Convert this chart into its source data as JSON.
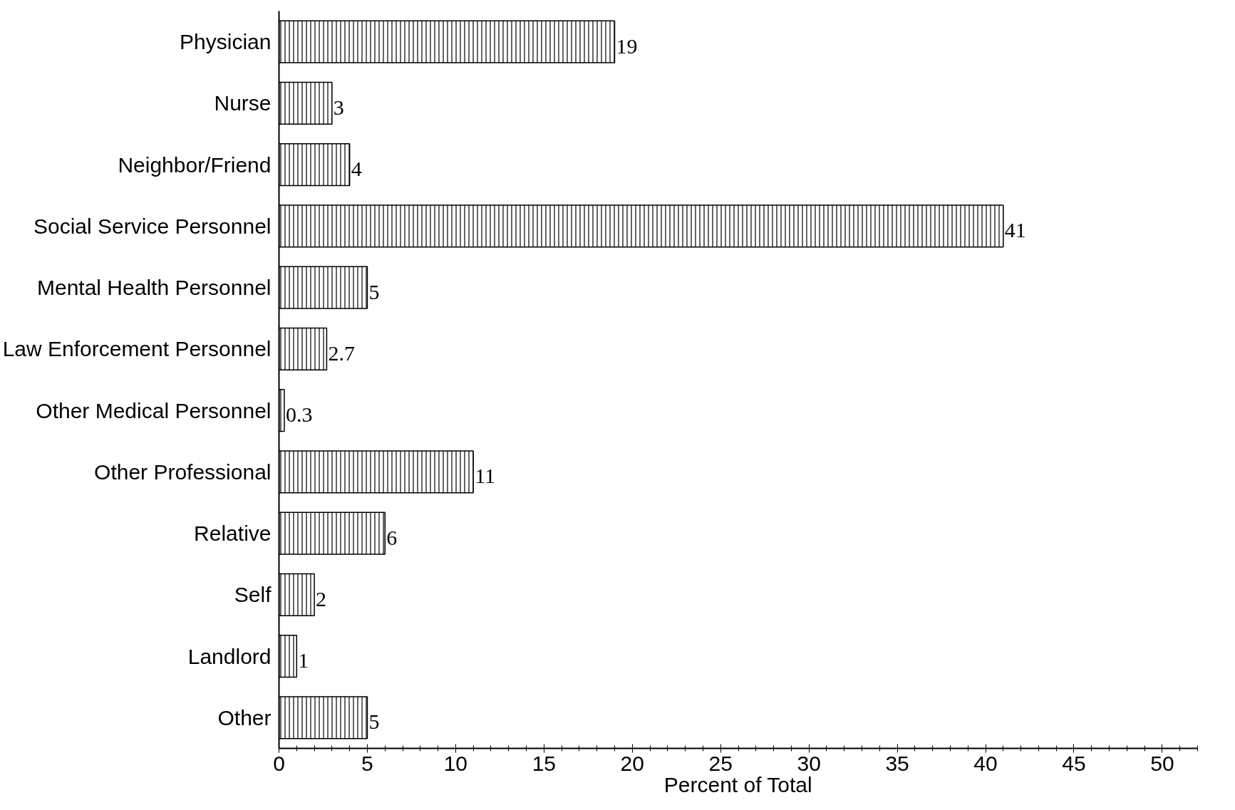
{
  "chart_data": {
    "type": "bar",
    "orientation": "horizontal",
    "xlabel": "Percent of Total",
    "categories": [
      "Physician",
      "Nurse",
      "Neighbor/Friend",
      "Social Service Personnel",
      "Mental Health Personnel",
      "Law Enforcement Personnel",
      "Other Medical Personnel",
      "Other Professional",
      "Relative",
      "Self",
      "Landlord",
      "Other"
    ],
    "values": [
      19,
      3,
      4,
      41,
      5,
      2.7,
      0.3,
      11,
      6,
      2,
      1,
      5
    ],
    "color": "#000000",
    "data_labels": true,
    "xlim": [
      0,
      52
    ],
    "xticks": [
      0,
      5,
      10,
      15,
      20,
      25,
      30,
      35,
      40,
      45,
      50
    ],
    "grid": false
  }
}
